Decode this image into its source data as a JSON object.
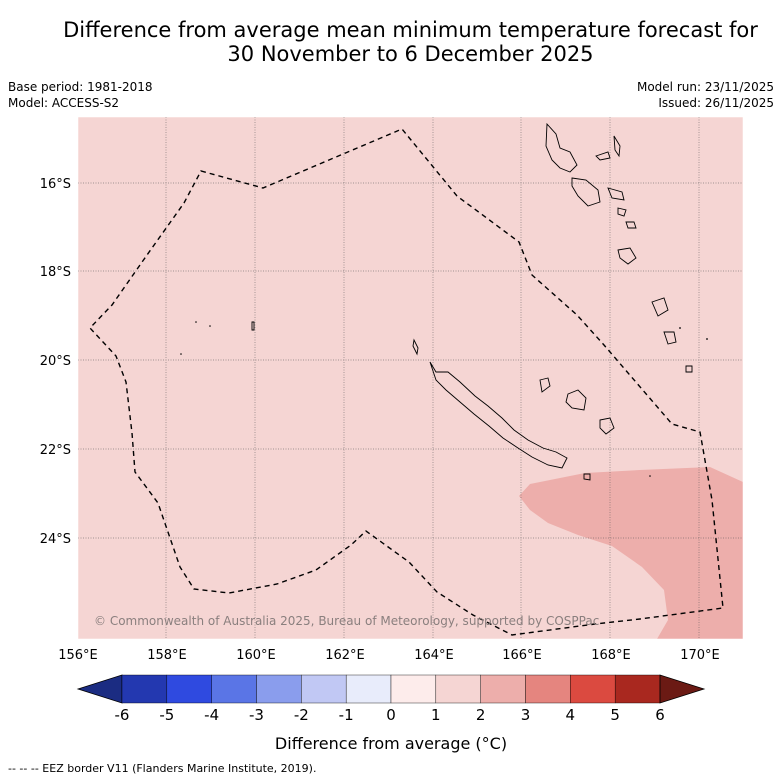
{
  "title": {
    "line1": "Difference from average mean minimum temperature forecast for",
    "line2": "30 November to 6 December 2025"
  },
  "meta": {
    "base_period": "Base period: 1981-2018",
    "model": "Model: ACCESS-S2",
    "model_run": "Model run: 23/11/2025",
    "issued": "Issued: 26/11/2025"
  },
  "map": {
    "lat_labels": [
      "16°S",
      "18°S",
      "20°S",
      "22°S",
      "24°S"
    ],
    "lon_labels": [
      "156°E",
      "158°E",
      "160°E",
      "162°E",
      "164°E",
      "166°E",
      "168°E",
      "170°E"
    ],
    "copyright": "© Commonwealth of Australia 2025, Bureau of Meteorology, supported by COSPPac",
    "background_class": "0 to 1",
    "anomaly_patch_class": "2 to 3"
  },
  "colorbar": {
    "ticks": [
      "-6",
      "-5",
      "-4",
      "-3",
      "-2",
      "-1",
      "0",
      "1",
      "2",
      "3",
      "4",
      "5",
      "6"
    ],
    "colors": [
      "#1b2c82",
      "#2338b0",
      "#2f4ae0",
      "#5a75e6",
      "#8a9ded",
      "#c1c8f4",
      "#e8ecfb",
      "#fdeceb",
      "#f5d5d3",
      "#edaeab",
      "#e5857f",
      "#db4a40",
      "#a9281f",
      "#6b1a14"
    ],
    "label": "Difference from average (°C)"
  },
  "footer": "--  --  -- EEZ border V11 (Flanders Marine Institute, 2019)."
}
